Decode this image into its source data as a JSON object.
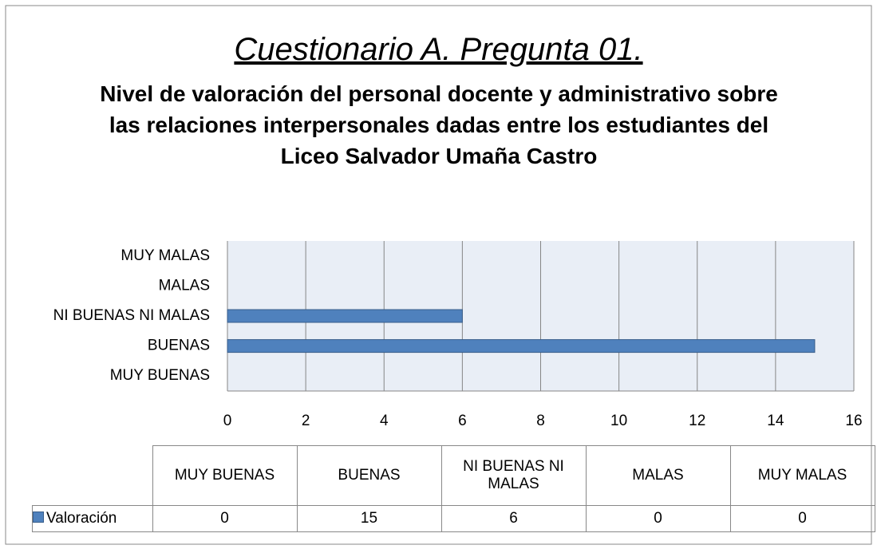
{
  "chart_data": {
    "type": "barh",
    "title": "Cuestionario A. Pregunta 01.",
    "subtitle": "Nivel de valoración del personal docente y administrativo sobre las relaciones interpersonales dadas entre los estudiantes del Liceo Salvador Umaña Castro",
    "categories": [
      "MUY BUENAS",
      "BUENAS",
      "NI BUENAS NI MALAS",
      "MALAS",
      "MUY MALAS"
    ],
    "series": [
      {
        "name": "Valoración",
        "color": "#4f81bd",
        "values": [
          0,
          15,
          6,
          0,
          0
        ]
      }
    ],
    "xlim": [
      0,
      16
    ],
    "xticks": [
      0,
      2,
      4,
      6,
      8,
      10,
      12,
      14,
      16
    ],
    "grid": true
  }
}
